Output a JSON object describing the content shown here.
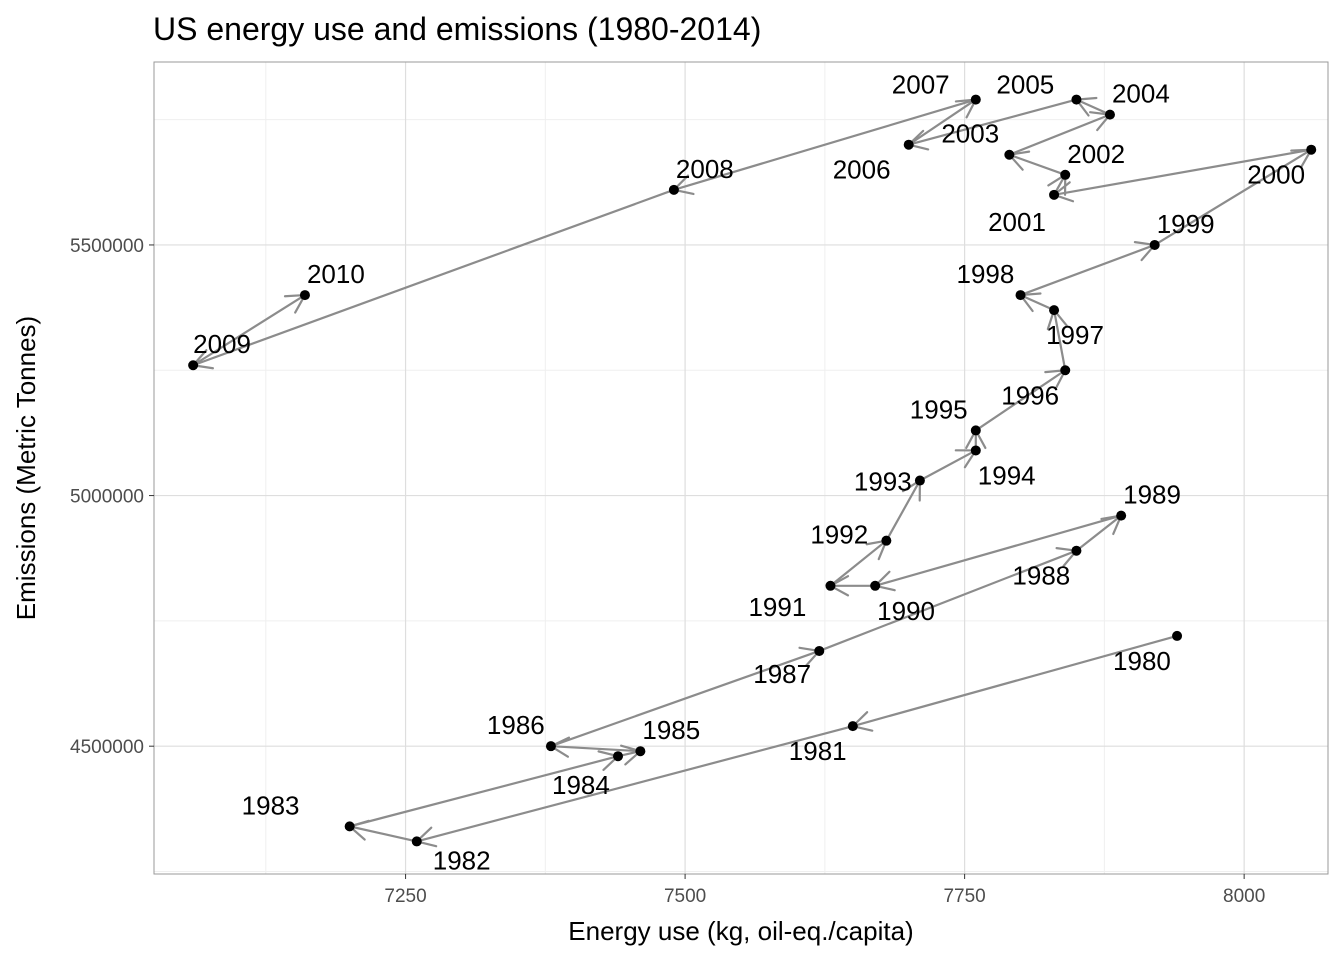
{
  "chart_data": {
    "type": "scatter",
    "title": "US energy use and emissions (1980-2014)",
    "xlabel": "Energy use (kg, oil-eq./capita)",
    "ylabel": "Emissions (Metric Tonnes)",
    "xlim": [
      7025,
      8075
    ],
    "ylim": [
      4245000,
      5865000
    ],
    "xticks": [
      7250,
      7500,
      7750,
      8000
    ],
    "xtick_labels": [
      "7250",
      "7500",
      "7750",
      "8000"
    ],
    "yticks": [
      4500000,
      5000000,
      5500000
    ],
    "ytick_labels": [
      "4500000",
      "5000000",
      "5500000"
    ],
    "grid": true,
    "connected": true,
    "arrows": true,
    "colors": {
      "point": "#000000",
      "path": "#8c8c8c",
      "grid_major": "#dedede",
      "grid_minor": "#efefef",
      "panel_border": "#999999"
    },
    "points": [
      {
        "label": "1980",
        "x": 7940,
        "y": 4720000
      },
      {
        "label": "1981",
        "x": 7650,
        "y": 4540000
      },
      {
        "label": "1982",
        "x": 7260,
        "y": 4310000
      },
      {
        "label": "1983",
        "x": 7200,
        "y": 4340000
      },
      {
        "label": "1984",
        "x": 7440,
        "y": 4480000
      },
      {
        "label": "1985",
        "x": 7460,
        "y": 4490000
      },
      {
        "label": "1986",
        "x": 7380,
        "y": 4500000
      },
      {
        "label": "1987",
        "x": 7620,
        "y": 4690000
      },
      {
        "label": "1988",
        "x": 7850,
        "y": 4890000
      },
      {
        "label": "1989",
        "x": 7890,
        "y": 4960000
      },
      {
        "label": "1990",
        "x": 7670,
        "y": 4820000
      },
      {
        "label": "1991",
        "x": 7630,
        "y": 4820000
      },
      {
        "label": "1992",
        "x": 7680,
        "y": 4910000
      },
      {
        "label": "1993",
        "x": 7710,
        "y": 5030000
      },
      {
        "label": "1994",
        "x": 7760,
        "y": 5090000
      },
      {
        "label": "1995",
        "x": 7760,
        "y": 5130000
      },
      {
        "label": "1996",
        "x": 7840,
        "y": 5250000
      },
      {
        "label": "1997",
        "x": 7830,
        "y": 5370000
      },
      {
        "label": "1998",
        "x": 7800,
        "y": 5400000
      },
      {
        "label": "1999",
        "x": 7920,
        "y": 5500000
      },
      {
        "label": "2000",
        "x": 8060,
        "y": 5690000
      },
      {
        "label": "2001",
        "x": 7830,
        "y": 5600000
      },
      {
        "label": "2002",
        "x": 7840,
        "y": 5640000
      },
      {
        "label": "2003",
        "x": 7790,
        "y": 5680000
      },
      {
        "label": "2004",
        "x": 7880,
        "y": 5760000
      },
      {
        "label": "2005",
        "x": 7850,
        "y": 5790000
      },
      {
        "label": "2006",
        "x": 7700,
        "y": 5700000
      },
      {
        "label": "2007",
        "x": 7760,
        "y": 5790000
      },
      {
        "label": "2008",
        "x": 7490,
        "y": 5610000
      },
      {
        "label": "2009",
        "x": 7060,
        "y": 5260000
      },
      {
        "label": "2010",
        "x": 7160,
        "y": 5400000
      }
    ]
  }
}
